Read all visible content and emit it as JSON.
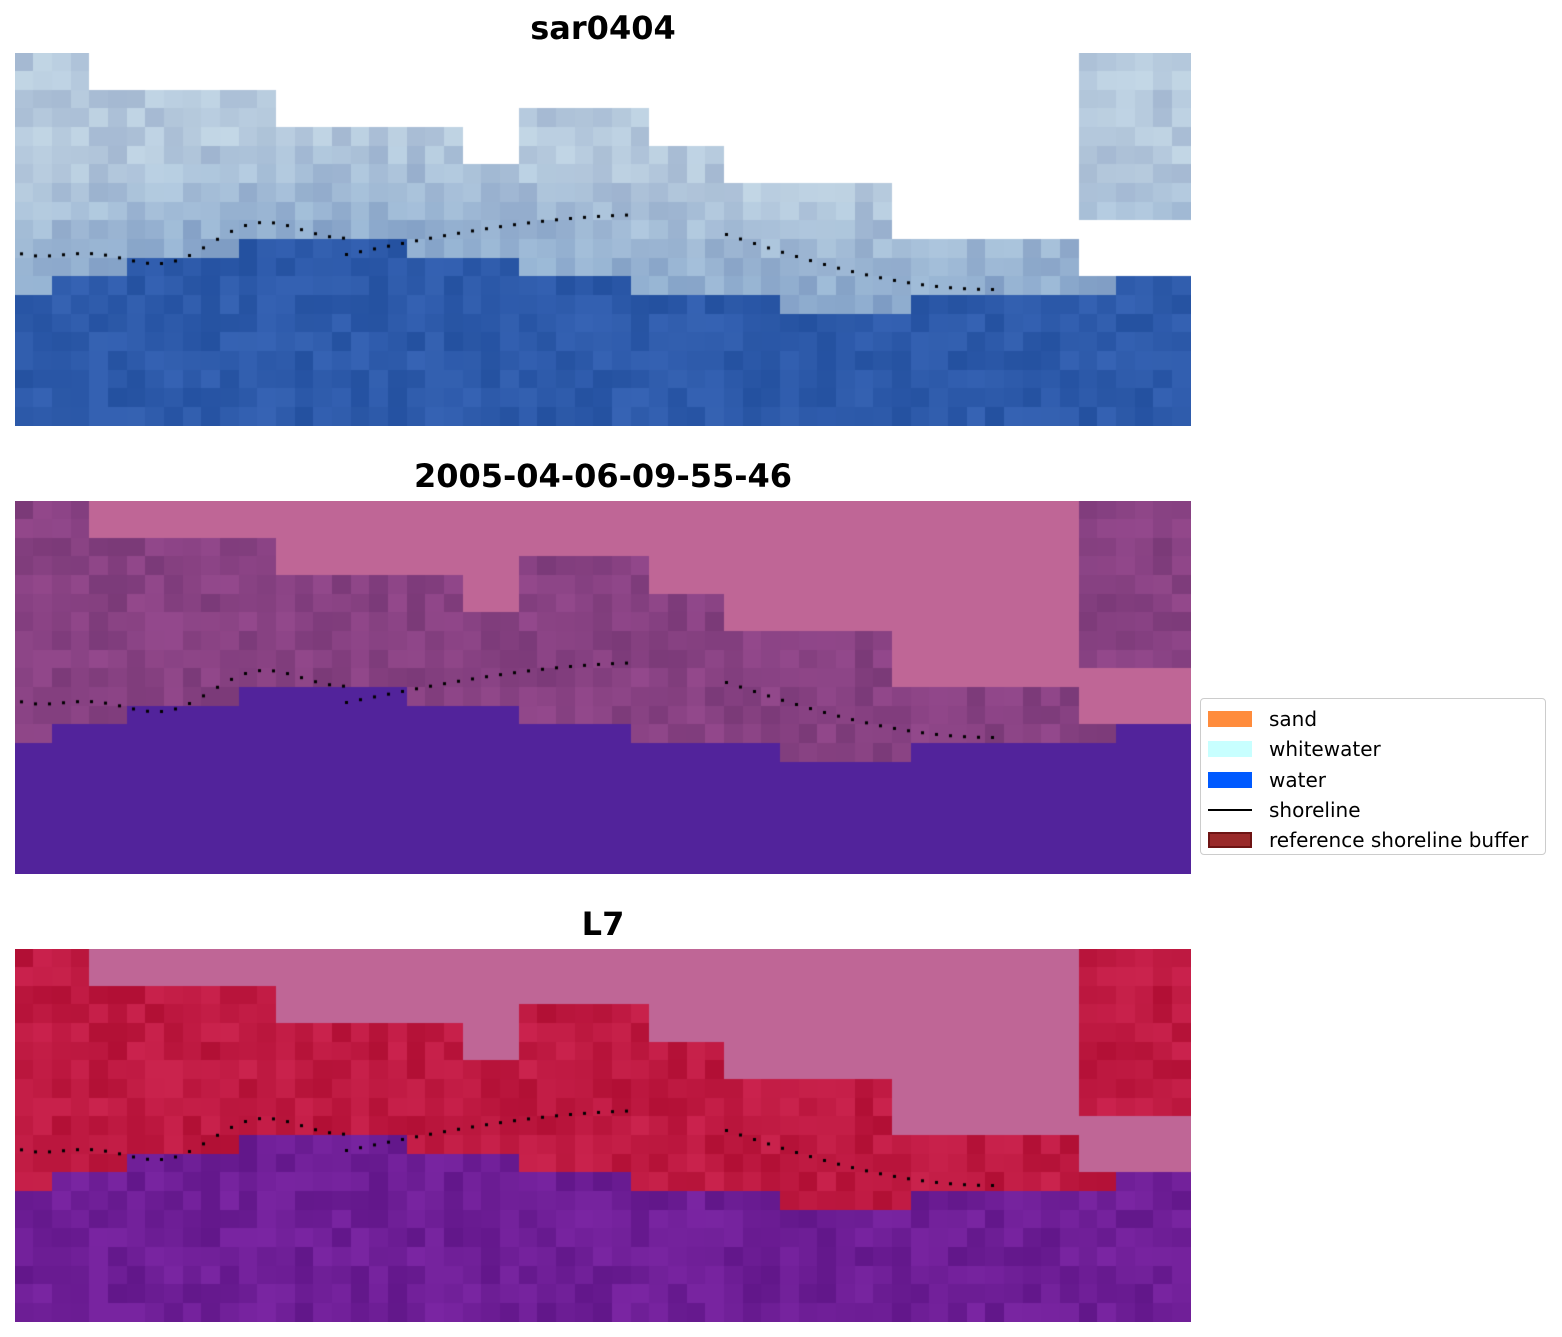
{
  "panels": [
    {
      "title": "sar0404",
      "style": "blue"
    },
    {
      "title": "2005-04-06-09-55-46",
      "style": "classified"
    },
    {
      "title": "L7",
      "style": "false-color"
    }
  ],
  "legend": {
    "items": [
      {
        "label": "sand",
        "kind": "patch",
        "color": "#ff8c3c"
      },
      {
        "label": "whitewater",
        "kind": "patch",
        "color": "#c8ffff"
      },
      {
        "label": "water",
        "kind": "patch",
        "color": "#005aff"
      },
      {
        "label": "shoreline",
        "kind": "line",
        "color": "#000000"
      },
      {
        "label": "reference shoreline buffer",
        "kind": "patch",
        "color": "#9a2a2a",
        "edge": "#6e1414"
      }
    ]
  },
  "colors": {
    "masked_pixel": "#bf6696",
    "deep_water_classified": "#52239b",
    "sar_water": "#2c5aa8",
    "l7_water": "#6e1d98",
    "l7_land": "#bd1a48",
    "shoreline_points": "#000000"
  }
}
